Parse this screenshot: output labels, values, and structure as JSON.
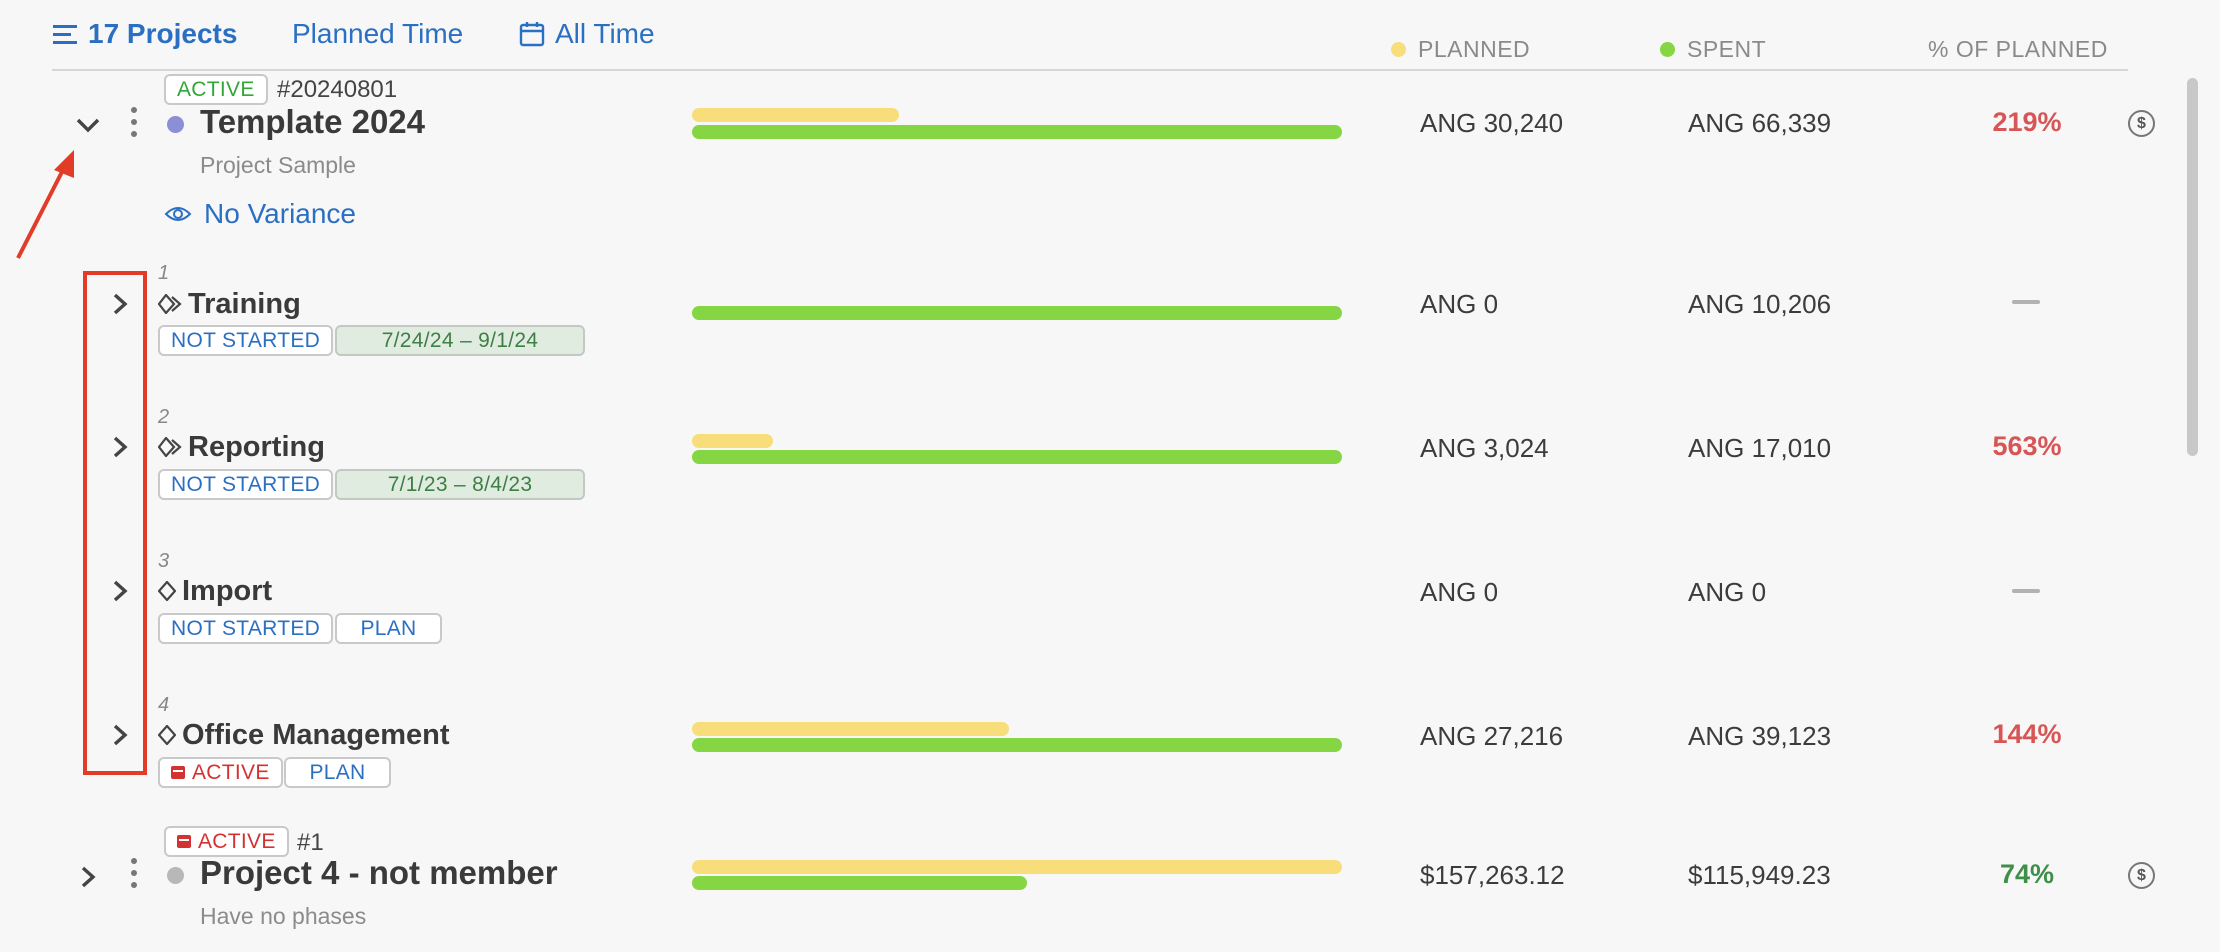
{
  "header": {
    "projects_label": "17 Projects",
    "planned_time_label": "Planned Time",
    "all_time_label": "All Time"
  },
  "columns": {
    "planned": "PLANNED",
    "spent": "SPENT",
    "pct": "% OF PLANNED"
  },
  "colors": {
    "accent": "#2b6fc2",
    "planned": "#f7de7a",
    "spent": "#86d644",
    "over_budget": "#d75555",
    "under_budget": "#3f8f4a"
  },
  "project1": {
    "status": "ACTIVE",
    "code": "#20240801",
    "name": "Template 2024",
    "subtitle": "Project Sample",
    "planned": "ANG 30,240",
    "spent": "ANG 66,339",
    "pct": "219%",
    "variance_label": "No Variance",
    "planned_amount": 30240,
    "spent_amount": 66339
  },
  "phases": [
    {
      "number": "1",
      "name": "Training",
      "status": "NOT STARTED",
      "tag": "7/24/24  –  9/1/24",
      "planned": "ANG 0",
      "spent": "ANG 10,206",
      "pct": "—",
      "planned_amount": 0,
      "spent_amount": 10206
    },
    {
      "number": "2",
      "name": "Reporting",
      "status": "NOT STARTED",
      "tag": "7/1/23   –   8/4/23",
      "planned": "ANG 3,024",
      "spent": "ANG 17,010",
      "pct": "563%",
      "planned_amount": 3024,
      "spent_amount": 17010
    },
    {
      "number": "3",
      "name": "Import",
      "status": "NOT STARTED",
      "tag": "PLAN",
      "planned": "ANG 0",
      "spent": "ANG 0",
      "pct": "—",
      "planned_amount": 0,
      "spent_amount": 0
    },
    {
      "number": "4",
      "name": "Office Management",
      "status": "ACTIVE",
      "tag": "PLAN",
      "planned": "ANG 27,216",
      "spent": "ANG 39,123",
      "pct": "144%",
      "planned_amount": 27216,
      "spent_amount": 39123
    }
  ],
  "project2": {
    "status": "ACTIVE",
    "code": "#1",
    "name": "Project 4 - not member",
    "subtitle": "Have no phases",
    "planned": "$157,263.12",
    "spent": "$115,949.23",
    "pct": "74%",
    "planned_amount": 157263.12,
    "spent_amount": 115949.23
  },
  "icons": {
    "dollar_symbol": "$"
  }
}
